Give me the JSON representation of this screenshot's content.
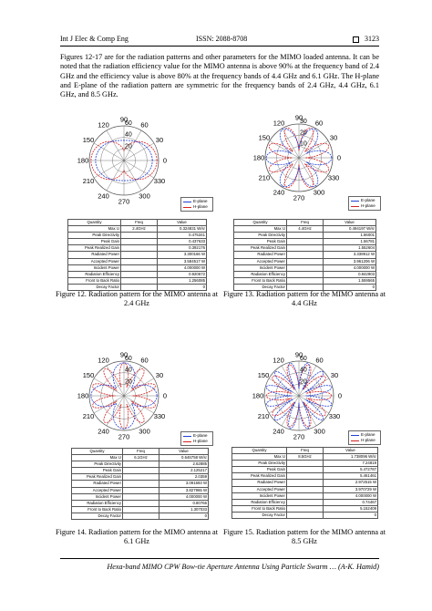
{
  "header": {
    "journal": "Int J Elec & Comp Eng",
    "issn": "ISSN: 2088-8708",
    "page": "3123"
  },
  "paragraph": "Figures 12-17 are for the radiation patterns and other parameters for the MIMO loaded antenna. It can be noted that the radiation efficiency value for the MIMO antenna is above 90% at the frequency band of 2.4 GHz and the efficiency value is above 80% at the frequency bands of 4.4 GHz and 6.1 GHz. The H-plane and E-plane of the radiation pattern are symmetric for the frequency bands of 2.4 GHz, 4.4 GHz, 6.1 GHz, and 8.5 GHz.",
  "colors": {
    "e_plane": "#1f3fd6",
    "h_plane": "#d62222",
    "grid": "#555555"
  },
  "polar_labels": {
    "angles": [
      "0",
      "30",
      "60",
      "90",
      "120",
      "150",
      "180",
      "210",
      "240",
      "270",
      "300",
      "330"
    ],
    "fig12_radial": [
      "60",
      "40",
      "20"
    ],
    "fig13_radial": [
      "30",
      "20",
      "10"
    ],
    "fig14_radial": [
      "60",
      "40",
      "20"
    ],
    "fig15_radial": [
      "60",
      "40",
      "20"
    ]
  },
  "legend": {
    "e_plane": "E-plane",
    "h_plane": "H-plane"
  },
  "table_headers": {
    "quantity": "Quantity",
    "freq": "Freq",
    "value": "Value"
  },
  "table_quantities": [
    "Max U",
    "Peak Directivity",
    "Peak Gain",
    "Peak Realized Gain",
    "Radiated Power",
    "Accepted Power",
    "Incident Power",
    "Radiation Efficiency",
    "Front to Back Ratio",
    "Decay Factor"
  ],
  "figures": {
    "fig12": {
      "caption": "Figure 12. Radiation pattern for the MIMO antenna at 2.4 GHz",
      "freq": "2.4GHz",
      "values": [
        "0.324831 W/sr",
        "0.475341",
        "0.437633",
        "0.392176",
        "3.300166 W",
        "3.584517 W",
        "4.000000 W",
        "0.920672",
        "1.256085",
        "0"
      ]
    },
    "fig13": {
      "caption": "Figure 13. Radiation pattern for the MIMO antenna at 4.4 GHz",
      "freq": "4.4GHz",
      "values": [
        "0.494197 W/sr",
        "1.86001",
        "1.56781",
        "1.552604",
        "3.338912 W",
        "3.961206 W",
        "4.000000 W",
        "0.842903",
        "1.559565",
        "0"
      ]
    },
    "fig14": {
      "caption": "Figure 14. Radiation pattern for the MIMO antenna at 6.1 GHz",
      "freq": "6.1GHz",
      "values": [
        "0.646758 W/sr",
        "2.62885",
        "2.125217",
        "2.0359",
        "3.091693 W",
        "3.827965 W",
        "4.000000 W",
        "0.80766",
        "1.307033",
        "0"
      ]
    },
    "fig15": {
      "caption": "Figure 15. Radiation pattern for the MIMO antenna at 8.5 GHz",
      "freq": "8.5GHz",
      "values": [
        "1.738096 W/sr",
        "7.24819",
        "5.472787",
        "5.461461",
        "2.972515 W",
        "3.970729 W",
        "4.000000 W",
        "0.74467",
        "5.152409",
        "0"
      ]
    }
  },
  "footer": "Hexa-band MIMO CPW Bow-tie Aperture Antenna Using Particle Swarm … (A-K. Hamid)"
}
